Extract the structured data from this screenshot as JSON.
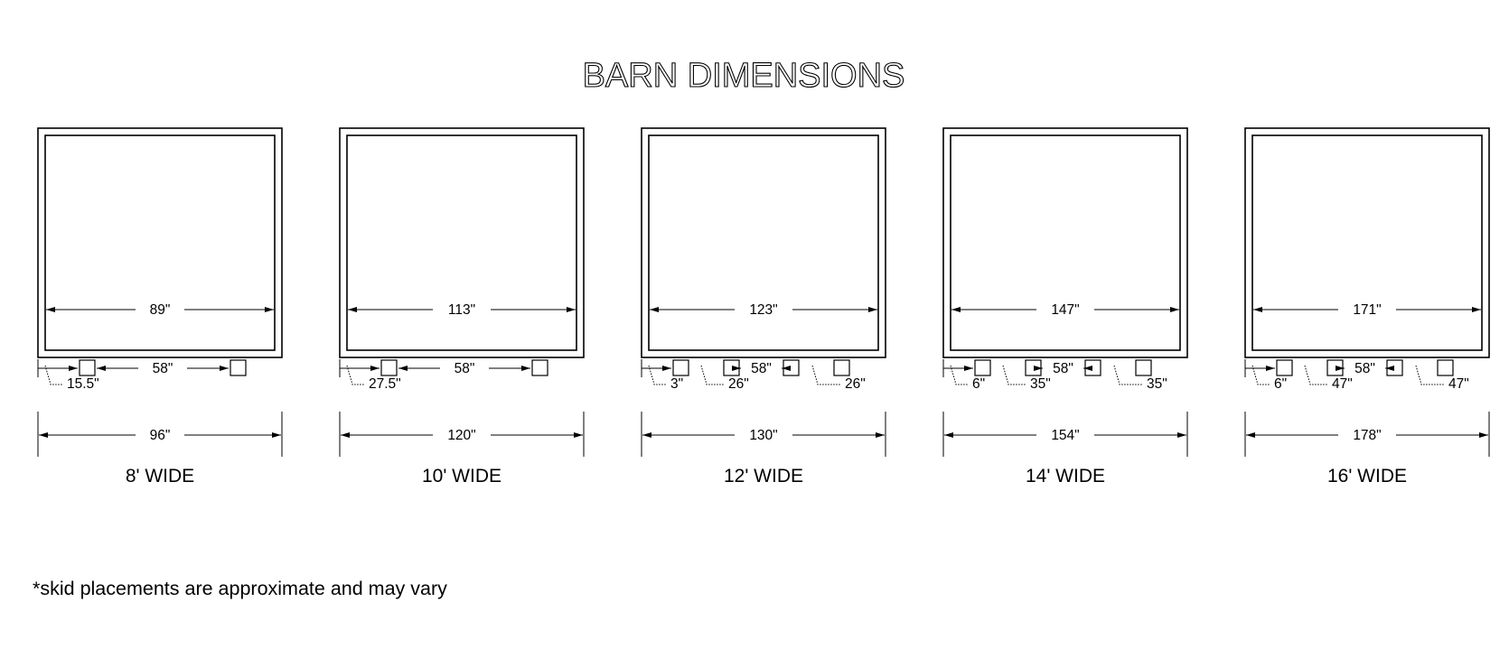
{
  "title": "BARN DIMENSIONS",
  "footnote": "*skid placements are approximate and may vary",
  "barns": [
    {
      "label": "8' WIDE",
      "overall": "96\"",
      "interior": "89\"",
      "skid_gap": "58\"",
      "skid_count": 2,
      "offsets": [
        {
          "text": "15.5\"",
          "side": "left"
        }
      ]
    },
    {
      "label": "10' WIDE",
      "overall": "120\"",
      "interior": "113\"",
      "skid_gap": "58\"",
      "skid_count": 2,
      "offsets": [
        {
          "text": "27.5\"",
          "side": "left"
        }
      ]
    },
    {
      "label": "12' WIDE",
      "overall": "130\"",
      "interior": "123\"",
      "skid_gap": "58\"",
      "skid_count": 4,
      "offsets": [
        {
          "text": "3\"",
          "side": "left"
        },
        {
          "text": "26\"",
          "side": "left-inner"
        },
        {
          "text": "26\"",
          "side": "right-inner"
        }
      ]
    },
    {
      "label": "14' WIDE",
      "overall": "154\"",
      "interior": "147\"",
      "skid_gap": "58\"",
      "skid_count": 4,
      "offsets": [
        {
          "text": "6\"",
          "side": "left"
        },
        {
          "text": "35\"",
          "side": "left-inner"
        },
        {
          "text": "35\"",
          "side": "right-inner"
        }
      ]
    },
    {
      "label": "16' WIDE",
      "overall": "178\"",
      "interior": "171\"",
      "skid_gap": "58\"",
      "skid_count": 4,
      "offsets": [
        {
          "text": "6\"",
          "side": "left"
        },
        {
          "text": "47\"",
          "side": "left-inner"
        },
        {
          "text": "47\"",
          "side": "right-inner"
        }
      ]
    }
  ]
}
